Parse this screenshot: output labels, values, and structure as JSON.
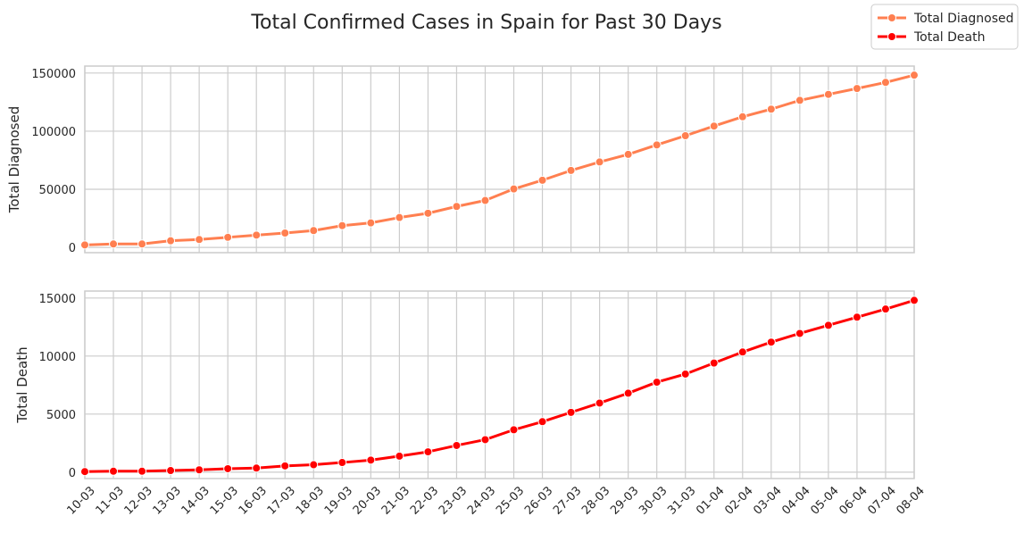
{
  "chart_data": {
    "type": "line",
    "title": "Total Confirmed Cases in Spain for Past 30 Days",
    "grid": true,
    "legend_position": "top-right",
    "categories": [
      "10-03",
      "11-03",
      "12-03",
      "13-03",
      "14-03",
      "15-03",
      "16-03",
      "17-03",
      "18-03",
      "19-03",
      "20-03",
      "21-03",
      "22-03",
      "23-03",
      "24-03",
      "25-03",
      "26-03",
      "27-03",
      "28-03",
      "29-03",
      "30-03",
      "31-03",
      "01-04",
      "02-04",
      "03-04",
      "04-04",
      "05-04",
      "06-04",
      "07-04",
      "08-04"
    ],
    "panels": [
      {
        "ylabel": "Total Diagnosed",
        "ylim": [
          -4500,
          156000
        ],
        "yticks": [
          0,
          50000,
          100000,
          150000
        ],
        "series": [
          {
            "name": "Total Diagnosed",
            "color": "#FF7F50",
            "values": [
              2140,
              2950,
              2950,
              5750,
              6800,
              8700,
              10600,
              12400,
              14500,
              18750,
              21100,
              25700,
              29400,
              35250,
              40400,
              50300,
              57800,
              66200,
              73500,
              80050,
              88150,
              96100,
              104400,
              112400,
              118950,
              126500,
              131650,
              136700,
              141950,
              148200
            ]
          }
        ]
      },
      {
        "ylabel": "Total Death",
        "ylim": [
          -550,
          15600
        ],
        "yticks": [
          0,
          5000,
          10000,
          15000
        ],
        "series": [
          {
            "name": "Total Death",
            "color": "#FF0000",
            "values": [
              50,
              80,
              80,
              140,
              200,
              300,
              350,
              540,
              640,
              830,
              1040,
              1380,
              1750,
              2300,
              2800,
              3650,
              4350,
              5150,
              5950,
              6800,
              7750,
              8450,
              9400,
              10350,
              11200,
              11950,
              12650,
              13350,
              14050,
              14800
            ]
          }
        ]
      }
    ]
  }
}
